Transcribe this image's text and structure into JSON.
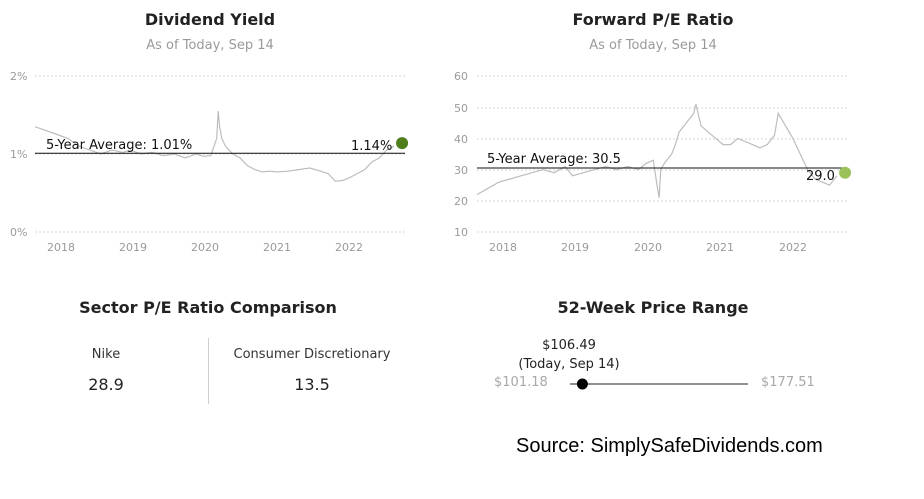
{
  "dividend": {
    "title": "Dividend Yield",
    "subtitle": "As of Today, Sep 14",
    "yticks": [
      "0%",
      "1%",
      "2%"
    ],
    "xticks": [
      "2018",
      "2019",
      "2020",
      "2021",
      "2022"
    ],
    "avg_label": "5-Year Average: 1.01%",
    "last_label": "1.14%",
    "dot_color": "#4e7f1c"
  },
  "pe": {
    "title": "Forward P/E Ratio",
    "subtitle": "As of Today, Sep 14",
    "yticks": [
      "10",
      "20",
      "30",
      "40",
      "50",
      "60"
    ],
    "xticks": [
      "2018",
      "2019",
      "2020",
      "2021",
      "2022"
    ],
    "avg_label": "5-Year Average: 30.5",
    "last_label": "29.0",
    "dot_color": "#9bc25a"
  },
  "sector": {
    "title": "Sector P/E Ratio Comparison",
    "left_name": "Nike",
    "left_value": "28.9",
    "right_name": "Consumer Discretionary",
    "right_value": "13.5"
  },
  "range": {
    "title": "52-Week Price Range",
    "current_price": "$106.49",
    "current_date": "(Today, Sep 14)",
    "low": "$101.18",
    "high": "$177.51",
    "low_value": 101.18,
    "high_value": 177.51,
    "current_value": 106.49
  },
  "source": "Source: SimplySafeDividends.com",
  "chart_data": [
    {
      "type": "line",
      "title": "Dividend Yield",
      "subtitle": "As of Today, Sep 14",
      "y_unit": "%",
      "ylim": [
        0,
        2
      ],
      "xlim": [
        2017.7,
        2022.75
      ],
      "grid": true,
      "reference_line": {
        "label": "5-Year Average: 1.01%",
        "value": 1.01
      },
      "last_point": {
        "label": "1.14%",
        "x": 2022.71,
        "y": 1.14
      },
      "x": [
        2017.7,
        2017.85,
        2018.0,
        2018.15,
        2018.3,
        2018.45,
        2018.6,
        2018.75,
        2018.9,
        2019.0,
        2019.15,
        2019.3,
        2019.45,
        2019.6,
        2019.75,
        2019.9,
        2020.0,
        2020.1,
        2020.18,
        2020.2,
        2020.22,
        2020.25,
        2020.3,
        2020.4,
        2020.5,
        2020.6,
        2020.7,
        2020.8,
        2020.9,
        2021.0,
        2021.15,
        2021.3,
        2021.45,
        2021.6,
        2021.7,
        2021.8,
        2021.9,
        2022.0,
        2022.1,
        2022.2,
        2022.3,
        2022.4,
        2022.5,
        2022.6
      ],
      "y": [
        1.35,
        1.3,
        1.25,
        1.2,
        1.1,
        1.05,
        1.0,
        1.05,
        1.02,
        1.05,
        1.0,
        1.02,
        0.98,
        1.0,
        0.95,
        1.0,
        0.97,
        0.98,
        1.2,
        1.55,
        1.35,
        1.2,
        1.1,
        1.0,
        0.95,
        0.85,
        0.8,
        0.77,
        0.78,
        0.77,
        0.78,
        0.8,
        0.82,
        0.78,
        0.75,
        0.65,
        0.66,
        0.7,
        0.75,
        0.8,
        0.9,
        0.95,
        1.05,
        1.1
      ]
    },
    {
      "type": "line",
      "title": "Forward P/E Ratio",
      "subtitle": "As of Today, Sep 14",
      "ylim": [
        10,
        60
      ],
      "xlim": [
        2017.7,
        2022.75
      ],
      "grid": true,
      "reference_line": {
        "label": "5-Year Average: 30.5",
        "value": 30.5
      },
      "last_point": {
        "label": "29.0",
        "x": 2022.71,
        "y": 29.0
      },
      "x": [
        2017.7,
        2017.85,
        2018.0,
        2018.15,
        2018.3,
        2018.45,
        2018.6,
        2018.75,
        2018.9,
        2019.0,
        2019.15,
        2019.3,
        2019.45,
        2019.6,
        2019.75,
        2019.9,
        2020.0,
        2020.1,
        2020.15,
        2020.18,
        2020.2,
        2020.25,
        2020.35,
        2020.4,
        2020.45,
        2020.55,
        2020.65,
        2020.68,
        2020.75,
        2020.85,
        2020.95,
        2021.05,
        2021.15,
        2021.25,
        2021.35,
        2021.45,
        2021.55,
        2021.65,
        2021.75,
        2021.8,
        2021.9,
        2022.0,
        2022.1,
        2022.2,
        2022.3,
        2022.4,
        2022.5,
        2022.6
      ],
      "y": [
        22,
        24,
        26,
        27,
        28,
        29,
        30,
        29,
        31,
        28,
        29,
        30,
        31,
        30,
        31,
        30,
        32,
        33,
        25,
        21,
        30,
        32,
        35,
        38,
        42,
        45,
        48,
        51,
        44,
        42,
        40,
        38,
        38,
        40,
        39,
        38,
        37,
        38,
        41,
        48,
        44,
        40,
        35,
        30,
        27,
        26,
        25,
        28
      ]
    }
  ]
}
